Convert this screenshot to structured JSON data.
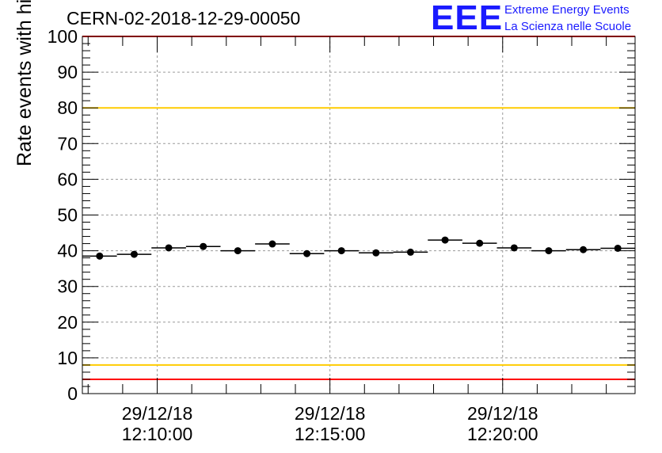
{
  "header": {
    "title": "CERN-02-2018-12-29-00050",
    "logo": {
      "mark": "EEE",
      "line1": "Extreme Energy Events",
      "line2": "La Scienza nelle Scuole",
      "color": "#1a1aff"
    }
  },
  "chart_data": {
    "type": "scatter",
    "title": "CERN-02-2018-12-29-00050",
    "xlabel": "",
    "ylabel": "Rate events with hits [Hz]",
    "ylim": [
      0,
      100
    ],
    "yticks": [
      0,
      10,
      20,
      30,
      40,
      50,
      60,
      70,
      80,
      90,
      100
    ],
    "xlim": [
      "2018-12-29 12:07:50",
      "2018-12-29 12:23:50"
    ],
    "xticks": [
      {
        "time": "2018-12-29 12:10:00",
        "date": "29/12/18",
        "clock": "12:10:00"
      },
      {
        "time": "2018-12-29 12:15:00",
        "date": "29/12/18",
        "clock": "12:15:00"
      },
      {
        "time": "2018-12-29 12:20:00",
        "date": "29/12/18",
        "clock": "12:20:00"
      }
    ],
    "grid": true,
    "bin_width_seconds": 60,
    "series": [
      {
        "x": [
          "2018-12-29 12:08:20",
          "2018-12-29 12:09:20",
          "2018-12-29 12:10:20",
          "2018-12-29 12:11:20",
          "2018-12-29 12:12:20",
          "2018-12-29 12:13:20",
          "2018-12-29 12:14:20",
          "2018-12-29 12:15:20",
          "2018-12-29 12:16:20",
          "2018-12-29 12:17:20",
          "2018-12-29 12:18:20",
          "2018-12-29 12:19:20",
          "2018-12-29 12:20:20",
          "2018-12-29 12:21:20",
          "2018-12-29 12:22:20",
          "2018-12-29 12:23:20"
        ],
        "y": [
          38.5,
          39.0,
          40.8,
          41.2,
          40.0,
          41.9,
          39.2,
          40.0,
          39.4,
          39.6,
          43.0,
          42.1,
          40.8,
          40.0,
          40.3,
          40.7
        ],
        "color": "#000000"
      }
    ],
    "reference_lines": [
      {
        "y": 100,
        "color": "#ff0000"
      },
      {
        "y": 80,
        "color": "#ffcc00"
      },
      {
        "y": 8,
        "color": "#ffcc00"
      },
      {
        "y": 4,
        "color": "#ff0000"
      }
    ]
  }
}
